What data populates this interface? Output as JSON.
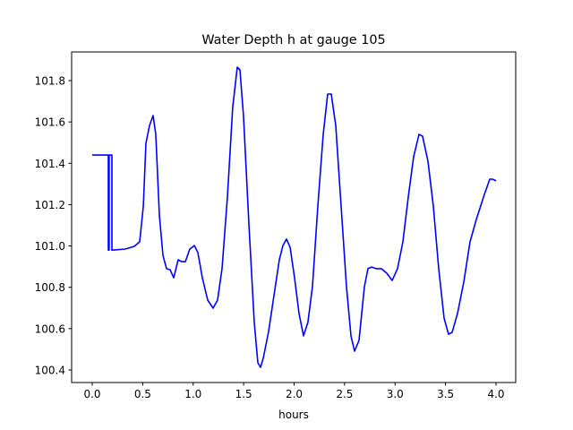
{
  "chart_data": {
    "type": "line",
    "title": "Water Depth h at gauge 105",
    "xlabel": "hours",
    "ylabel": "",
    "xlim": [
      -0.2,
      4.2
    ],
    "ylim": [
      100.35,
      101.94
    ],
    "xticks": [
      0.0,
      0.5,
      1.0,
      1.5,
      2.0,
      2.5,
      3.0,
      3.5,
      4.0
    ],
    "xtick_labels": [
      "0.0",
      "0.5",
      "1.0",
      "1.5",
      "2.0",
      "2.5",
      "3.0",
      "3.5",
      "4.0"
    ],
    "yticks": [
      100.4,
      100.6,
      100.8,
      101.0,
      101.2,
      101.4,
      101.6,
      101.8
    ],
    "ytick_labels": [
      "100.4",
      "100.6",
      "100.8",
      "101.0",
      "101.2",
      "101.4",
      "101.6",
      "101.8"
    ],
    "grid": false,
    "series": [
      {
        "name": "h",
        "color": "#0000ff",
        "x": [
          0,
          0.16,
          0.16,
          0.168,
          0.168,
          0.195,
          0.195,
          0.328,
          0.417,
          0.47,
          0.506,
          0.532,
          0.568,
          0.603,
          0.63,
          0.665,
          0.701,
          0.736,
          0.772,
          0.807,
          0.851,
          0.887,
          0.922,
          0.967,
          1.011,
          1.047,
          1.091,
          1.144,
          1.197,
          1.242,
          1.286,
          1.339,
          1.392,
          1.437,
          1.463,
          1.499,
          1.552,
          1.605,
          1.641,
          1.667,
          1.694,
          1.747,
          1.8,
          1.854,
          1.889,
          1.925,
          1.96,
          2.004,
          2.049,
          2.093,
          2.137,
          2.182,
          2.235,
          2.288,
          2.333,
          2.368,
          2.412,
          2.466,
          2.519,
          2.563,
          2.599,
          2.643,
          2.696,
          2.732,
          2.767,
          2.812,
          2.865,
          2.918,
          2.971,
          3.024,
          3.078,
          3.131,
          3.184,
          3.237,
          3.273,
          3.326,
          3.379,
          3.432,
          3.486,
          3.53,
          3.565,
          3.619,
          3.681,
          3.743,
          3.805,
          3.876,
          3.938,
          3.965,
          4.0
        ],
        "y": [
          101.44,
          101.44,
          100.98,
          100.98,
          101.44,
          101.44,
          100.98,
          100.985,
          100.998,
          101.02,
          101.193,
          101.497,
          101.583,
          101.631,
          101.54,
          101.15,
          100.955,
          100.89,
          100.885,
          100.846,
          100.933,
          100.924,
          100.924,
          100.985,
          101.002,
          100.968,
          100.846,
          100.738,
          100.699,
          100.738,
          100.89,
          101.236,
          101.67,
          101.865,
          101.852,
          101.627,
          101.106,
          100.63,
          100.435,
          100.413,
          100.456,
          100.586,
          100.76,
          100.933,
          101.002,
          101.033,
          100.994,
          100.846,
          100.673,
          100.565,
          100.63,
          100.803,
          101.193,
          101.54,
          101.735,
          101.735,
          101.583,
          101.193,
          100.803,
          100.565,
          100.491,
          100.543,
          100.803,
          100.89,
          100.898,
          100.89,
          100.89,
          100.868,
          100.833,
          100.89,
          101.02,
          101.236,
          101.432,
          101.54,
          101.531,
          101.41,
          101.193,
          100.89,
          100.651,
          100.573,
          100.582,
          100.673,
          100.825,
          101.02,
          101.128,
          101.236,
          101.323,
          101.323,
          101.315
        ]
      }
    ]
  }
}
